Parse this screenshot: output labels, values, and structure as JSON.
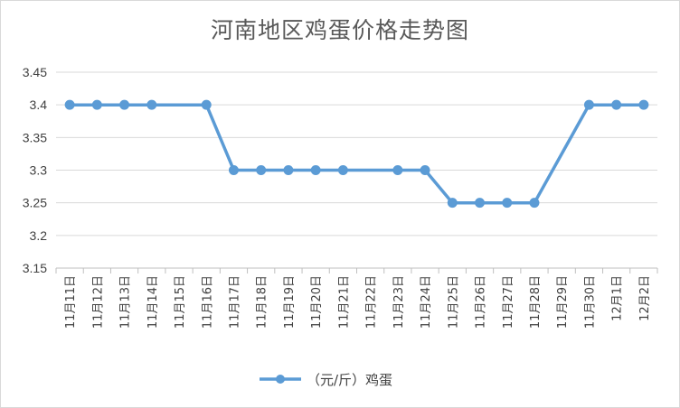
{
  "chart_data": {
    "type": "line",
    "title": "河南地区鸡蛋价格走势图",
    "categories": [
      "11月11日",
      "11月12日",
      "11月13日",
      "11月14日",
      "11月15日",
      "11月16日",
      "11月17日",
      "11月18日",
      "11月19日",
      "11月20日",
      "11月21日",
      "11月22日",
      "11月23日",
      "11月24日",
      "11月25日",
      "11月26日",
      "11月27日",
      "11月28日",
      "11月29日",
      "11月30日",
      "12月1日",
      "12月2日"
    ],
    "series": [
      {
        "name": "（元/斤）鸡蛋",
        "values": [
          3.4,
          3.4,
          3.4,
          3.4,
          null,
          3.4,
          3.3,
          3.3,
          3.3,
          3.3,
          3.3,
          null,
          3.3,
          3.3,
          3.25,
          3.25,
          3.25,
          3.25,
          null,
          3.4,
          3.4,
          3.4
        ],
        "color": "#5b9bd5"
      }
    ],
    "yticks": [
      "3.45",
      "3.4",
      "3.35",
      "3.3",
      "3.25",
      "3.2",
      "3.15"
    ],
    "ylim": [
      3.15,
      3.45
    ],
    "grid": true,
    "legend_position": "bottom"
  }
}
